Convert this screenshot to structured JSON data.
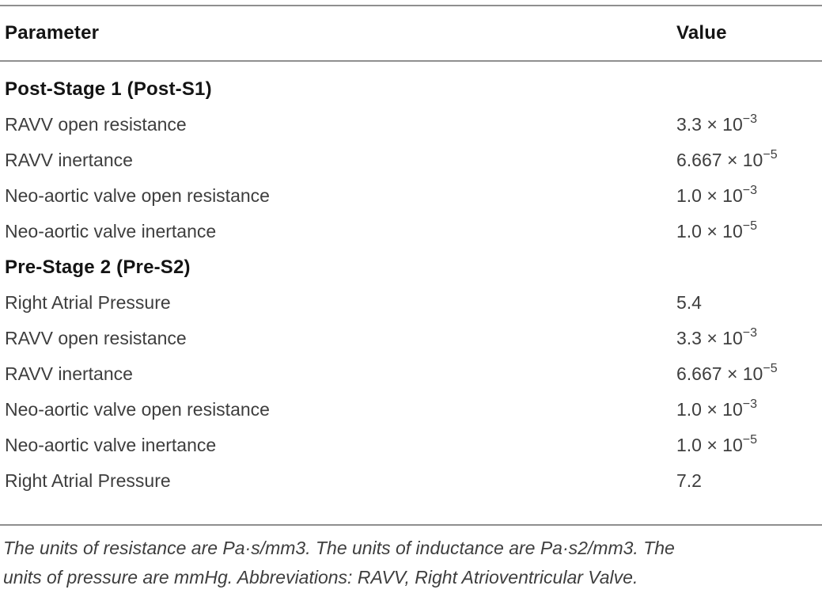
{
  "table": {
    "header": {
      "parameter": "Parameter",
      "value": "Value"
    },
    "rows": [
      {
        "type": "section",
        "label": "Post-Stage 1 (Post-S1)"
      },
      {
        "type": "data",
        "label": "RAVV open resistance",
        "value_base": "3.3 × 10",
        "value_exp": "−3"
      },
      {
        "type": "data",
        "label": "RAVV inertance",
        "value_base": "6.667 × 10",
        "value_exp": "−5"
      },
      {
        "type": "data",
        "label": "Neo-aortic valve open resistance",
        "value_base": "1.0 × 10",
        "value_exp": "−3"
      },
      {
        "type": "data",
        "label": "Neo-aortic valve inertance",
        "value_base": "1.0 × 10",
        "value_exp": "−5"
      },
      {
        "type": "section",
        "label": "Pre-Stage 2 (Pre-S2)"
      },
      {
        "type": "data",
        "label": "Right Atrial Pressure",
        "value_base": "5.4"
      },
      {
        "type": "data",
        "label": "RAVV open resistance",
        "value_base": "3.3 × 10",
        "value_exp": "−3"
      },
      {
        "type": "data",
        "label": "RAVV inertance",
        "value_base": "6.667 × 10",
        "value_exp": "−5"
      },
      {
        "type": "data",
        "label": "Neo-aortic valve open resistance",
        "value_base": "1.0 × 10",
        "value_exp": "−3"
      },
      {
        "type": "data",
        "label": "Neo-aortic valve inertance",
        "value_base": "1.0 × 10",
        "value_exp": "−5"
      },
      {
        "type": "data",
        "label": "Right Atrial Pressure",
        "value_base": "7.2"
      }
    ],
    "footnote_lines": [
      "The units of resistance are Pa·s/mm3. The units of inductance are Pa·s2/mm3. The",
      "units of pressure are mmHg. Abbreviations: RAVV, Right Atrioventricular Valve."
    ]
  },
  "colors": {
    "rule": "#8f8f8f",
    "heading_text": "#141414",
    "body_text": "#3e3e3e",
    "background": "#ffffff"
  }
}
